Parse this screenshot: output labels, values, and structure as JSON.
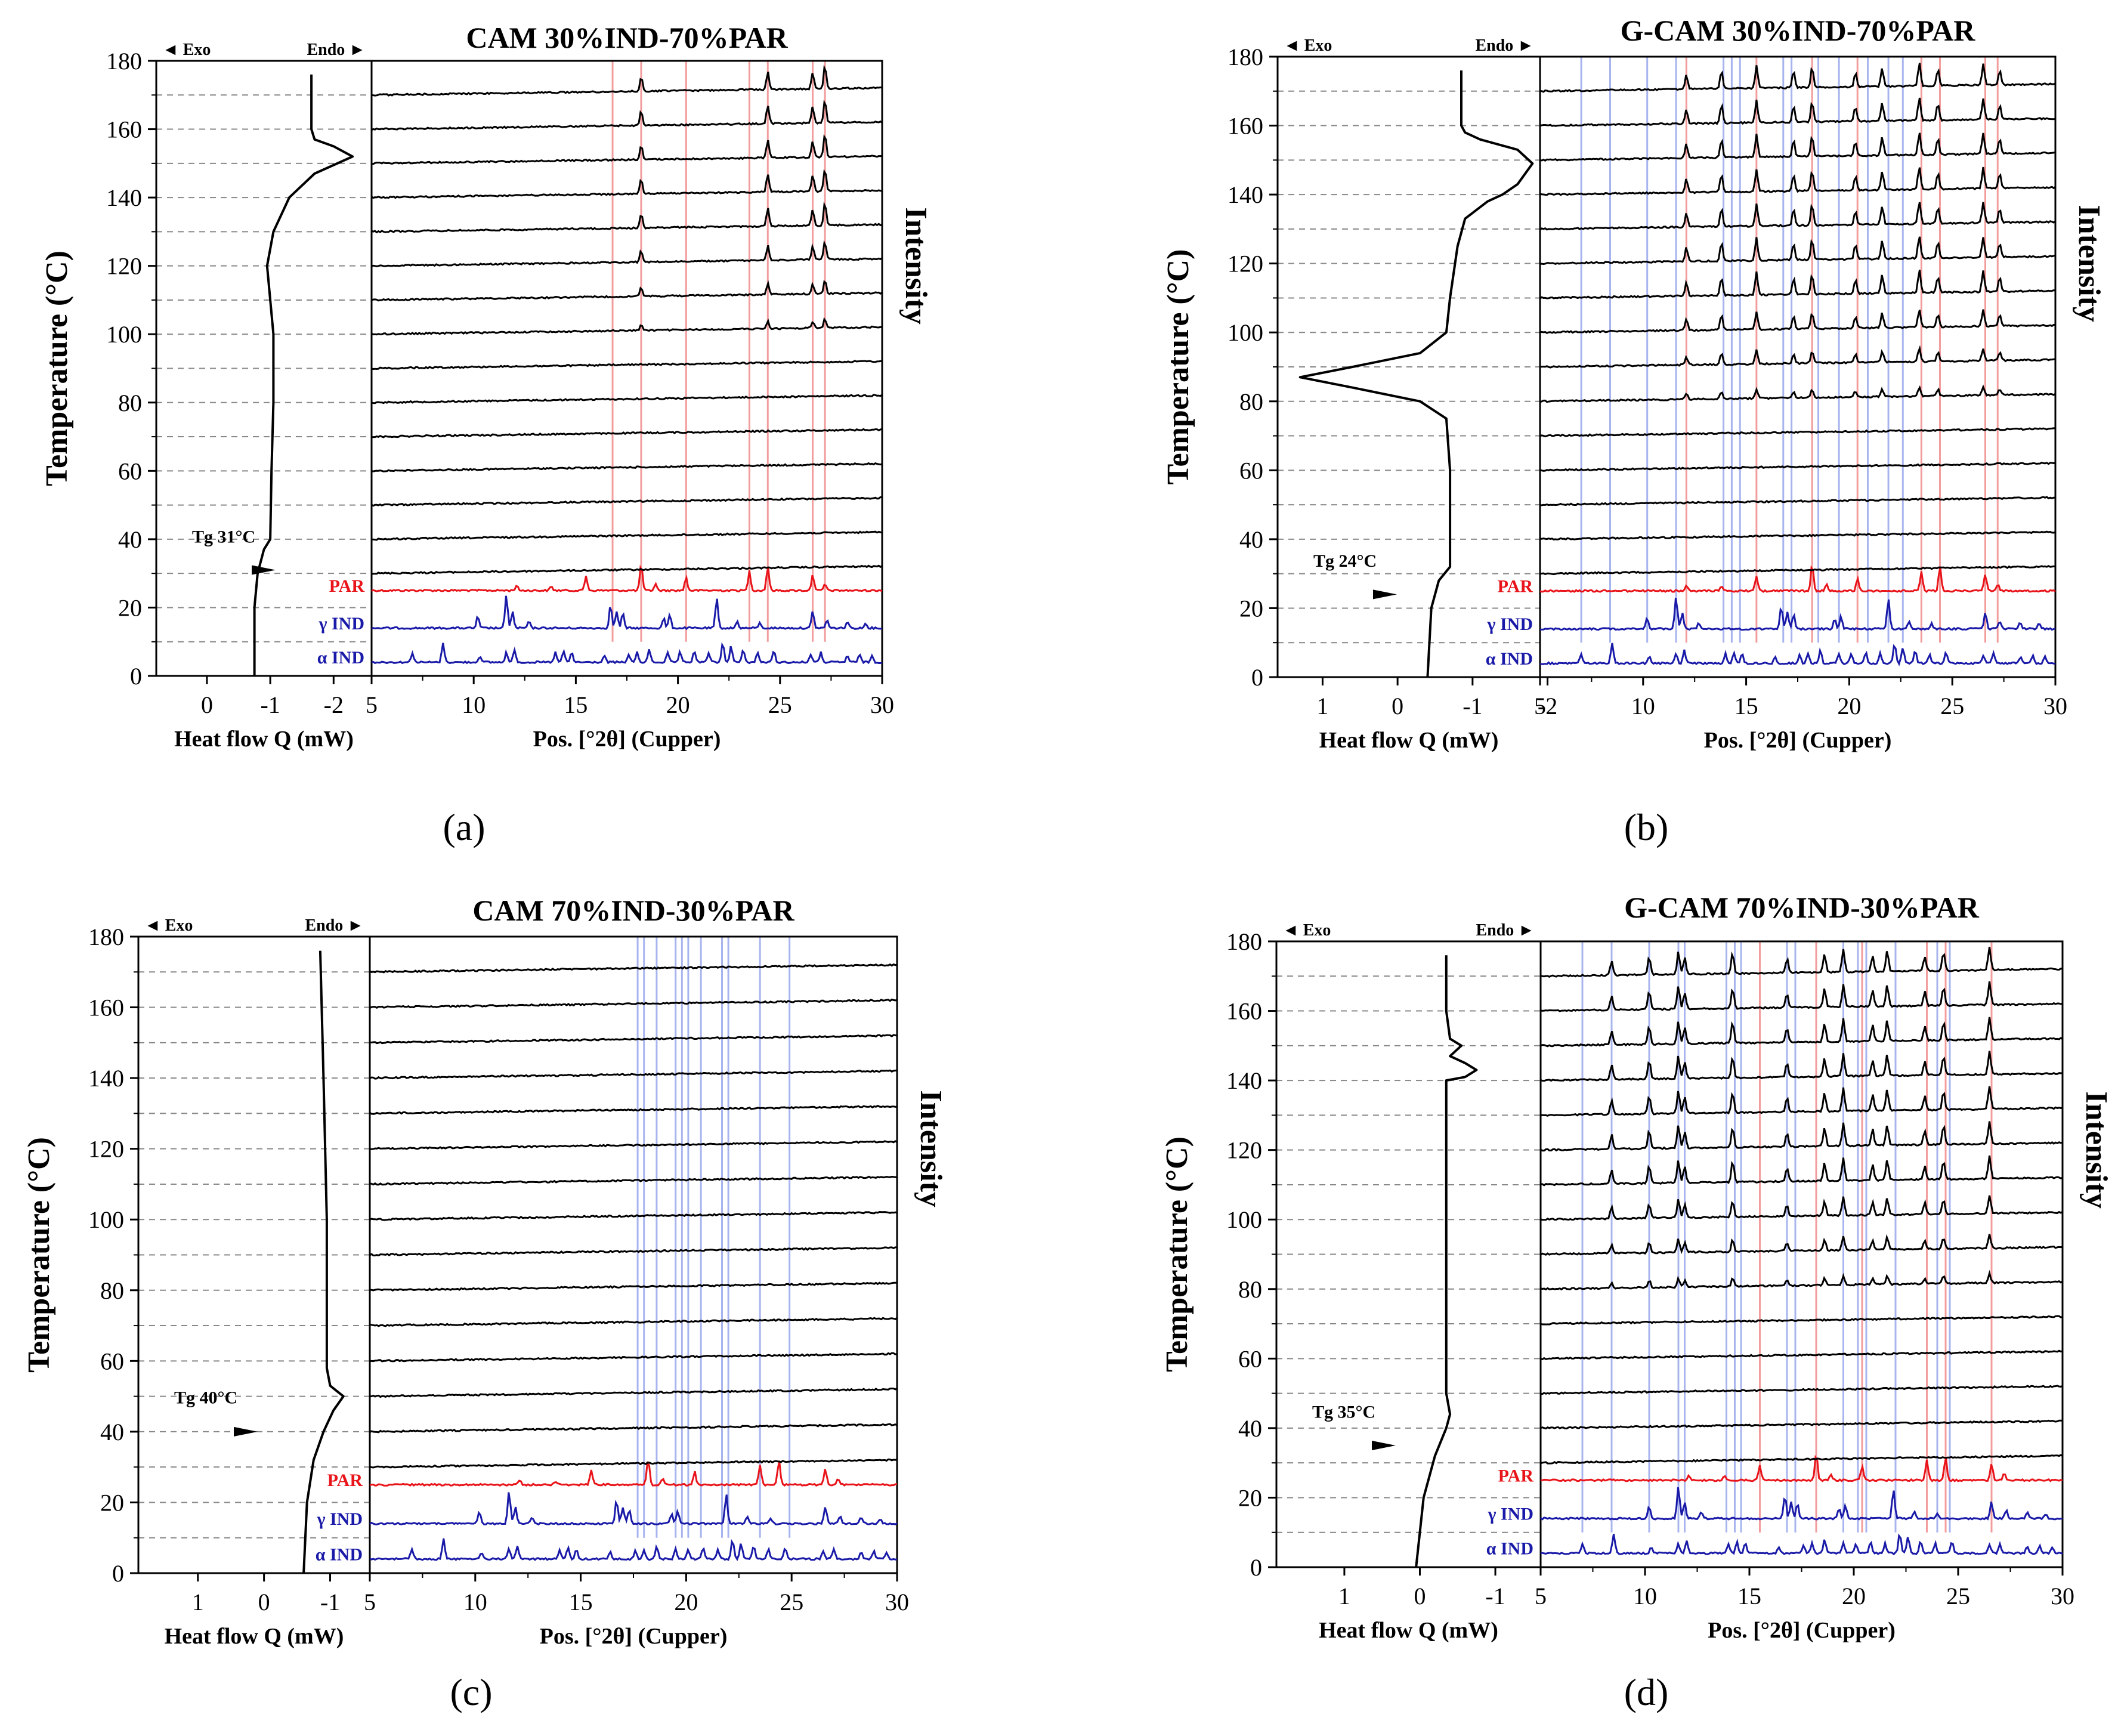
{
  "chart_data": [
    {
      "id": "a",
      "type": "line",
      "title": "CAM 30%IND-70%PAR",
      "caption_letter": "a",
      "left_panel": {
        "xlabel": "Heat flow Q (mW)",
        "xticks": [
          "0",
          "-1",
          "-2"
        ],
        "xrange": [
          0.8,
          -2.6
        ],
        "tg_label": "Tg 31°C",
        "tg_value": 31,
        "dsc_points": [
          [
            -0.75,
            0
          ],
          [
            -0.75,
            20
          ],
          [
            -0.8,
            30
          ],
          [
            -0.9,
            37
          ],
          [
            -1.0,
            40
          ],
          [
            -1.02,
            60
          ],
          [
            -1.05,
            80
          ],
          [
            -1.05,
            100
          ],
          [
            -1.0,
            110
          ],
          [
            -0.95,
            120
          ],
          [
            -1.05,
            130
          ],
          [
            -1.3,
            140
          ],
          [
            -1.7,
            147
          ],
          [
            -2.3,
            152
          ],
          [
            -2.0,
            155
          ],
          [
            -1.7,
            157
          ],
          [
            -1.65,
            160
          ],
          [
            -1.65,
            176
          ]
        ]
      },
      "right_panel": {
        "xlabel": "Pos. [°2θ] (Cupper)",
        "xticks": [
          "5",
          "10",
          "15",
          "20",
          "25",
          "30"
        ],
        "xrange": [
          5,
          30
        ],
        "cryst_start": 100,
        "cryst_peaks": [
          18.2,
          24.4,
          27.2,
          26.6
        ],
        "ref_lines": {
          "red": [
            16.8,
            18.2,
            20.4,
            23.5,
            24.4,
            26.6,
            27.2
          ],
          "blue": []
        }
      },
      "yaxis": {
        "label": "Temperature (°C)",
        "ticks": [
          "0",
          "20",
          "40",
          "60",
          "80",
          "100",
          "120",
          "140",
          "160",
          "180"
        ],
        "range": [
          0,
          180
        ]
      },
      "ylabel_right": "Intensity",
      "exo": "Exo",
      "endo": "Endo",
      "references": [
        "PAR",
        "γ IND",
        "α IND"
      ]
    },
    {
      "id": "b",
      "type": "line",
      "title": "G-CAM 30%IND-70%PAR",
      "caption_letter": "b",
      "left_panel": {
        "xlabel": "Heat flow Q (mW)",
        "xticks": [
          "1",
          "0",
          "-1",
          "-2"
        ],
        "xrange": [
          1.6,
          -1.9
        ],
        "tg_label": "Tg 24°C",
        "tg_value": 24,
        "dsc_points": [
          [
            -0.4,
            0
          ],
          [
            -0.45,
            20
          ],
          [
            -0.55,
            28
          ],
          [
            -0.7,
            32
          ],
          [
            -0.7,
            60
          ],
          [
            -0.65,
            75
          ],
          [
            -0.3,
            80
          ],
          [
            0.6,
            84
          ],
          [
            1.3,
            87
          ],
          [
            0.6,
            90
          ],
          [
            -0.3,
            94
          ],
          [
            -0.65,
            100
          ],
          [
            -0.7,
            110
          ],
          [
            -0.8,
            125
          ],
          [
            -0.9,
            133
          ],
          [
            -1.2,
            138
          ],
          [
            -1.4,
            140
          ],
          [
            -1.6,
            143
          ],
          [
            -1.8,
            149
          ],
          [
            -1.6,
            153
          ],
          [
            -1.1,
            156
          ],
          [
            -0.9,
            158
          ],
          [
            -0.85,
            160
          ],
          [
            -0.85,
            176
          ]
        ]
      },
      "right_panel": {
        "xlabel": "Pos. [°2θ] (Cupper)",
        "xticks": [
          "5",
          "10",
          "15",
          "20",
          "25",
          "30"
        ],
        "xrange": [
          5,
          30
        ],
        "cryst_start": 80,
        "cryst_peaks": [
          12.1,
          13.8,
          15.5,
          17.3,
          18.2,
          20.3,
          21.6,
          23.4,
          24.3,
          26.5,
          27.3
        ],
        "ref_lines": {
          "red": [
            12.1,
            15.5,
            18.2,
            20.4,
            23.5,
            24.4,
            26.6,
            27.2
          ],
          "blue": [
            7.0,
            8.4,
            10.2,
            11.6,
            13.9,
            14.3,
            14.7,
            16.8,
            17.2,
            18.5,
            19.5,
            20.9,
            21.9,
            22.6
          ]
        }
      },
      "yaxis": {
        "label": "Temperature (°C)",
        "ticks": [
          "0",
          "20",
          "40",
          "60",
          "80",
          "100",
          "120",
          "140",
          "160",
          "180"
        ],
        "range": [
          0,
          180
        ]
      },
      "ylabel_right": "Intensity",
      "exo": "Exo",
      "endo": "Endo",
      "references": [
        "PAR",
        "γ IND",
        "α IND"
      ]
    },
    {
      "id": "c",
      "type": "line",
      "title": "CAM 70%IND-30%PAR",
      "caption_letter": "c",
      "left_panel": {
        "xlabel": "Heat flow Q (mW)",
        "xticks": [
          "1",
          "0",
          "-1"
        ],
        "xrange": [
          1.9,
          -1.6
        ],
        "tg_label": "Tg 40°C",
        "tg_value": 40,
        "dsc_points": [
          [
            -0.6,
            0
          ],
          [
            -0.65,
            20
          ],
          [
            -0.75,
            32
          ],
          [
            -0.9,
            40
          ],
          [
            -1.05,
            46
          ],
          [
            -1.2,
            50
          ],
          [
            -1.0,
            53
          ],
          [
            -0.95,
            58
          ],
          [
            -0.95,
            100
          ],
          [
            -0.9,
            140
          ],
          [
            -0.85,
            176
          ]
        ]
      },
      "right_panel": {
        "xlabel": "Pos. [°2θ] (Cupper)",
        "xticks": [
          "5",
          "10",
          "15",
          "20",
          "25",
          "30"
        ],
        "xrange": [
          5,
          30
        ],
        "cryst_start": 1000,
        "cryst_peaks": [],
        "ref_lines": {
          "red": [],
          "blue": [
            17.7,
            18.0,
            18.6,
            19.5,
            19.8,
            20.1,
            20.7,
            21.7,
            22.0,
            23.5,
            24.9
          ]
        }
      },
      "yaxis": {
        "label": "Temperature (°C)",
        "ticks": [
          "0",
          "20",
          "40",
          "60",
          "80",
          "100",
          "120",
          "140",
          "160",
          "180"
        ],
        "range": [
          0,
          180
        ]
      },
      "ylabel_right": "Intensity",
      "exo": "Exo",
      "endo": "Endo",
      "references": [
        "PAR",
        "γ IND",
        "α IND"
      ]
    },
    {
      "id": "d",
      "type": "line",
      "title": "G-CAM 70%IND-30%PAR",
      "caption_letter": "d",
      "left_panel": {
        "xlabel": "Heat flow Q (mW)",
        "xticks": [
          "1",
          "0",
          "-1"
        ],
        "xrange": [
          1.9,
          -1.6
        ],
        "tg_label": "Tg 35°C",
        "tg_value": 35,
        "dsc_points": [
          [
            0.05,
            0
          ],
          [
            -0.05,
            20
          ],
          [
            -0.2,
            32
          ],
          [
            -0.35,
            40
          ],
          [
            -0.4,
            44
          ],
          [
            -0.35,
            50
          ],
          [
            -0.35,
            140
          ],
          [
            -0.6,
            141
          ],
          [
            -0.75,
            143
          ],
          [
            -0.6,
            145
          ],
          [
            -0.4,
            147
          ],
          [
            -0.55,
            150
          ],
          [
            -0.4,
            152
          ],
          [
            -0.35,
            160
          ],
          [
            -0.35,
            176
          ]
        ]
      },
      "right_panel": {
        "xlabel": "Pos. [°2θ] (Cupper)",
        "xticks": [
          "5",
          "10",
          "15",
          "20",
          "25",
          "30"
        ],
        "xrange": [
          5,
          30
        ],
        "cryst_start": 80,
        "cryst_peaks": [
          8.4,
          10.2,
          11.6,
          11.9,
          14.2,
          16.8,
          18.6,
          19.5,
          20.9,
          21.6,
          23.4,
          24.3,
          26.5
        ],
        "ref_lines": {
          "red": [
            15.5,
            18.2,
            20.4,
            23.5,
            24.4,
            26.6
          ],
          "blue": [
            7.0,
            8.4,
            10.2,
            11.6,
            11.9,
            13.9,
            14.3,
            14.6,
            16.8,
            17.2,
            19.5,
            20.2,
            20.6,
            22.0,
            24.0,
            24.6
          ]
        }
      },
      "yaxis": {
        "label": "Temperature (°C)",
        "ticks": [
          "0",
          "20",
          "40",
          "60",
          "80",
          "100",
          "120",
          "140",
          "160",
          "180"
        ],
        "range": [
          0,
          180
        ]
      },
      "ylabel_right": "Intensity",
      "exo": "Exo",
      "endo": "Endo",
      "references": [
        "PAR",
        "γ IND",
        "α IND"
      ]
    }
  ],
  "colors": {
    "par": "#e8141a",
    "ind": "#1a1aa8",
    "trace": "#000000",
    "ref_red": "#f29c9c",
    "ref_blue": "#a8b4ee",
    "grid": "#888888"
  }
}
